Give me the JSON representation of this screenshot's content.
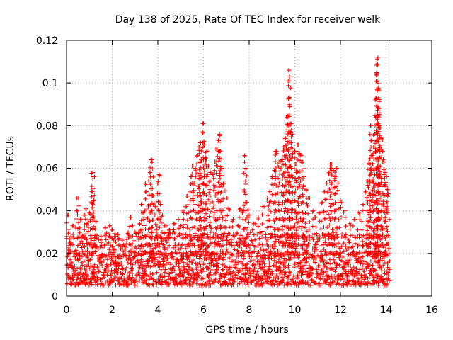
{
  "chart_data": {
    "type": "scatter",
    "title": "Day 138 of 2025, Rate Of TEC Index for receiver welk",
    "xlabel": "GPS time / hours",
    "ylabel": "ROTI / TECUs",
    "xlim": [
      0,
      16
    ],
    "ylim": [
      0,
      0.12
    ],
    "x_ticks": [
      0,
      2,
      4,
      6,
      8,
      10,
      12,
      14,
      16
    ],
    "x_tick_labels": [
      "0",
      "2",
      "4",
      "6",
      "8",
      "10",
      "12",
      "14",
      "16"
    ],
    "y_ticks": [
      0,
      0.02,
      0.04,
      0.06,
      0.08,
      0.1,
      0.12
    ],
    "y_tick_labels": [
      "0",
      "0.02",
      "0.04",
      "0.06",
      "0.08",
      "0.1",
      "0.12"
    ],
    "grid": true,
    "marker": "+",
    "color": "#ff0000",
    "series": [
      {
        "name": "ROTI",
        "points": [
          [
            0.05,
            0.038
          ],
          [
            0.1,
            0.03
          ],
          [
            0.15,
            0.025
          ],
          [
            0.3,
            0.033
          ],
          [
            0.45,
            0.04
          ],
          [
            0.5,
            0.046
          ],
          [
            0.6,
            0.036
          ],
          [
            0.75,
            0.028
          ],
          [
            0.8,
            0.038
          ],
          [
            0.85,
            0.041
          ],
          [
            0.9,
            0.034
          ],
          [
            1.0,
            0.039
          ],
          [
            1.05,
            0.036
          ],
          [
            1.1,
            0.049
          ],
          [
            1.15,
            0.058
          ],
          [
            1.17,
            0.056
          ],
          [
            1.2,
            0.045
          ],
          [
            1.3,
            0.035
          ],
          [
            1.5,
            0.028
          ],
          [
            1.7,
            0.032
          ],
          [
            1.9,
            0.033
          ],
          [
            2.0,
            0.031
          ],
          [
            2.1,
            0.028
          ],
          [
            2.3,
            0.027
          ],
          [
            2.5,
            0.024
          ],
          [
            2.7,
            0.03
          ],
          [
            2.8,
            0.037
          ],
          [
            2.9,
            0.033
          ],
          [
            3.0,
            0.03
          ],
          [
            3.2,
            0.034
          ],
          [
            3.3,
            0.043
          ],
          [
            3.35,
            0.039
          ],
          [
            3.45,
            0.053
          ],
          [
            3.5,
            0.049
          ],
          [
            3.6,
            0.043
          ],
          [
            3.65,
            0.058
          ],
          [
            3.7,
            0.064
          ],
          [
            3.75,
            0.063
          ],
          [
            3.8,
            0.047
          ],
          [
            3.9,
            0.042
          ],
          [
            4.0,
            0.053
          ],
          [
            4.05,
            0.057
          ],
          [
            4.1,
            0.043
          ],
          [
            4.2,
            0.038
          ],
          [
            4.3,
            0.033
          ],
          [
            4.5,
            0.031
          ],
          [
            4.7,
            0.034
          ],
          [
            4.9,
            0.036
          ],
          [
            5.0,
            0.033
          ],
          [
            5.1,
            0.04
          ],
          [
            5.25,
            0.042
          ],
          [
            5.3,
            0.047
          ],
          [
            5.45,
            0.056
          ],
          [
            5.5,
            0.061
          ],
          [
            5.55,
            0.053
          ],
          [
            5.65,
            0.06
          ],
          [
            5.75,
            0.066
          ],
          [
            5.8,
            0.07
          ],
          [
            5.85,
            0.072
          ],
          [
            5.9,
            0.064
          ],
          [
            5.95,
            0.077
          ],
          [
            6.0,
            0.081
          ],
          [
            6.05,
            0.071
          ],
          [
            6.1,
            0.065
          ],
          [
            6.15,
            0.068
          ],
          [
            6.2,
            0.061
          ],
          [
            6.3,
            0.058
          ],
          [
            6.4,
            0.057
          ],
          [
            6.5,
            0.063
          ],
          [
            6.6,
            0.069
          ],
          [
            6.65,
            0.073
          ],
          [
            6.7,
            0.076
          ],
          [
            6.75,
            0.068
          ],
          [
            6.8,
            0.06
          ],
          [
            6.9,
            0.053
          ],
          [
            7.0,
            0.046
          ],
          [
            7.1,
            0.041
          ],
          [
            7.3,
            0.036
          ],
          [
            7.5,
            0.033
          ],
          [
            7.6,
            0.041
          ],
          [
            7.7,
            0.04
          ],
          [
            7.8,
            0.066
          ],
          [
            7.85,
            0.06
          ],
          [
            7.9,
            0.044
          ],
          [
            8.0,
            0.038
          ],
          [
            8.2,
            0.034
          ],
          [
            8.4,
            0.037
          ],
          [
            8.6,
            0.042
          ],
          [
            8.8,
            0.046
          ],
          [
            8.9,
            0.049
          ],
          [
            9.0,
            0.056
          ],
          [
            9.1,
            0.059
          ],
          [
            9.15,
            0.068
          ],
          [
            9.2,
            0.067
          ],
          [
            9.3,
            0.063
          ],
          [
            9.35,
            0.061
          ],
          [
            9.45,
            0.064
          ],
          [
            9.5,
            0.07
          ],
          [
            9.55,
            0.069
          ],
          [
            9.6,
            0.074
          ],
          [
            9.65,
            0.078
          ],
          [
            9.7,
            0.084
          ],
          [
            9.72,
            0.093
          ],
          [
            9.74,
            0.106
          ],
          [
            9.76,
            0.101
          ],
          [
            9.8,
            0.081
          ],
          [
            9.85,
            0.078
          ],
          [
            9.9,
            0.076
          ],
          [
            10.0,
            0.068
          ],
          [
            10.05,
            0.062
          ],
          [
            10.1,
            0.058
          ],
          [
            10.15,
            0.071
          ],
          [
            10.2,
            0.067
          ],
          [
            10.3,
            0.066
          ],
          [
            10.35,
            0.063
          ],
          [
            10.4,
            0.056
          ],
          [
            10.5,
            0.05
          ],
          [
            10.6,
            0.046
          ],
          [
            10.8,
            0.04
          ],
          [
            10.9,
            0.037
          ],
          [
            11.1,
            0.039
          ],
          [
            11.2,
            0.044
          ],
          [
            11.3,
            0.049
          ],
          [
            11.4,
            0.053
          ],
          [
            11.5,
            0.058
          ],
          [
            11.55,
            0.062
          ],
          [
            11.6,
            0.06
          ],
          [
            11.7,
            0.059
          ],
          [
            11.75,
            0.056
          ],
          [
            11.8,
            0.06
          ],
          [
            11.9,
            0.053
          ],
          [
            12.0,
            0.045
          ],
          [
            12.2,
            0.04
          ],
          [
            12.4,
            0.034
          ],
          [
            12.6,
            0.036
          ],
          [
            12.8,
            0.039
          ],
          [
            13.0,
            0.043
          ],
          [
            13.1,
            0.049
          ],
          [
            13.2,
            0.054
          ],
          [
            13.25,
            0.063
          ],
          [
            13.3,
            0.062
          ],
          [
            13.32,
            0.08
          ],
          [
            13.35,
            0.073
          ],
          [
            13.4,
            0.066
          ],
          [
            13.45,
            0.07
          ],
          [
            13.5,
            0.076
          ],
          [
            13.55,
            0.093
          ],
          [
            13.58,
            0.101
          ],
          [
            13.6,
            0.104
          ],
          [
            13.62,
            0.109
          ],
          [
            13.64,
            0.112
          ],
          [
            13.66,
            0.097
          ],
          [
            13.68,
            0.088
          ],
          [
            13.7,
            0.086
          ],
          [
            13.75,
            0.079
          ],
          [
            13.8,
            0.074
          ],
          [
            13.85,
            0.068
          ],
          [
            13.9,
            0.063
          ],
          [
            13.95,
            0.058
          ],
          [
            14.0,
            0.056
          ],
          [
            14.05,
            0.05
          ],
          [
            14.1,
            0.048
          ]
        ],
        "baseline_envelope": {
          "x_range": [
            0.0,
            14.15
          ],
          "typical_low": 0.005,
          "typical_high": 0.03
        }
      }
    ]
  }
}
